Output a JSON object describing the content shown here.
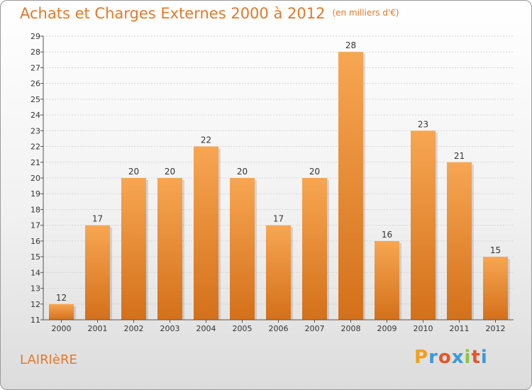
{
  "header": {
    "title": "Achats et Charges Externes 2000 à 2012",
    "unit": "(en milliers d'€)"
  },
  "town": "LAIRIèRE",
  "logo": {
    "letters": [
      "P",
      "r",
      "o",
      "x",
      "i",
      "t",
      "i"
    ],
    "colors": [
      "#f0a020",
      "#3a9ad9",
      "#e8542b",
      "#3a9ad9",
      "#8cc63f",
      "#e8542b",
      "#3a9ad9"
    ]
  },
  "colors": {
    "bar": "#f0973a",
    "bar_dark": "#d46f16",
    "accent": "#e2792a"
  },
  "chart_data": {
    "type": "bar",
    "categories": [
      "2000",
      "2001",
      "2002",
      "2003",
      "2004",
      "2005",
      "2006",
      "2007",
      "2008",
      "2009",
      "2010",
      "2011",
      "2012"
    ],
    "values": [
      12,
      17,
      20,
      20,
      22,
      20,
      17,
      20,
      28,
      16,
      23,
      21,
      15
    ],
    "title": "Achats et Charges Externes 2000 à 2012",
    "ylim": [
      11,
      29
    ],
    "yticks": [
      11,
      12,
      13,
      14,
      15,
      16,
      17,
      18,
      19,
      20,
      21,
      22,
      23,
      24,
      25,
      26,
      27,
      28,
      29
    ],
    "grid": true
  }
}
